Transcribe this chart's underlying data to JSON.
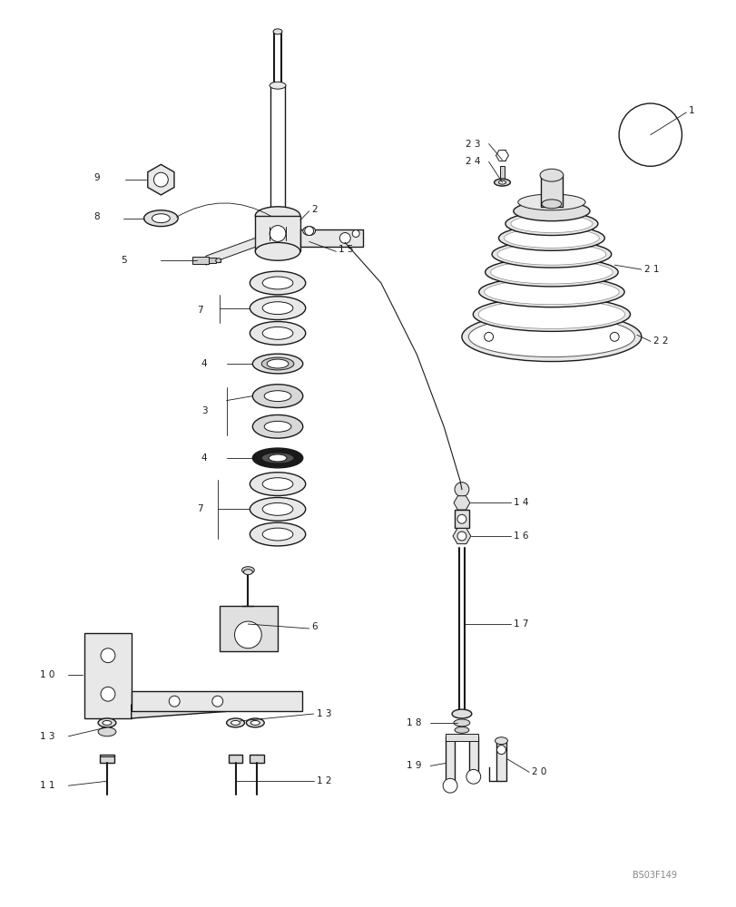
{
  "bg_color": "#ffffff",
  "line_color": "#1a1a1a",
  "label_color": "#1a1a1a",
  "fig_width": 8.12,
  "fig_height": 10.0,
  "watermark": "BS03F149"
}
